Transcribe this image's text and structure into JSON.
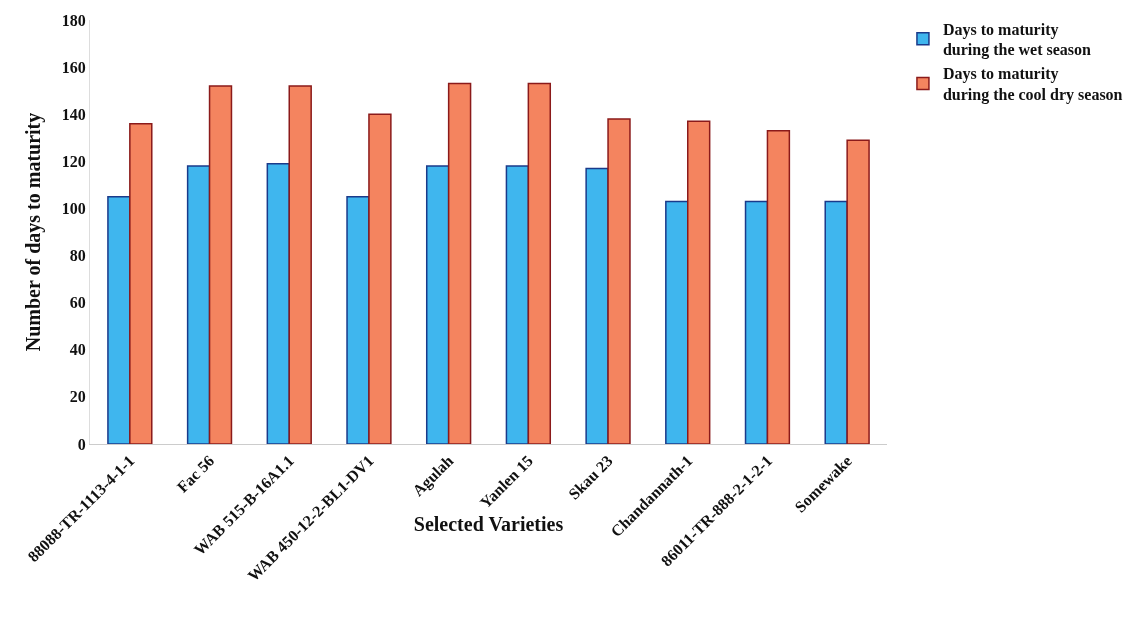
{
  "chart_data": {
    "type": "bar",
    "xlabel": "Selected Varieties",
    "ylabel": "Number of days to maturity",
    "categories": [
      "88088-TR-1113-4-1-1",
      "Fac 56",
      "WAB 515-B-16A1.1",
      "WAB 450-12-2-BL1-DV1",
      "Agulah",
      "Yanlen 15",
      "Skau 23",
      "Chandannath-1",
      "86011-TR-888-2-1-2-1",
      "Somewake"
    ],
    "series": [
      {
        "name": "Days to maturity during the wet season",
        "color": "#3fb6ee",
        "values": [
          105,
          118,
          119,
          105,
          118,
          118,
          117,
          103,
          103,
          103
        ]
      },
      {
        "name": "Days to maturity during the cool dry season",
        "color": "#f4845f",
        "values": [
          136,
          152,
          152,
          140,
          153,
          153,
          138,
          137,
          133,
          129
        ]
      }
    ],
    "ylim": [
      0,
      180
    ],
    "yticks": [
      0,
      20,
      40,
      60,
      80,
      100,
      120,
      140,
      160,
      180
    ],
    "grid": false,
    "legend": "top right"
  }
}
